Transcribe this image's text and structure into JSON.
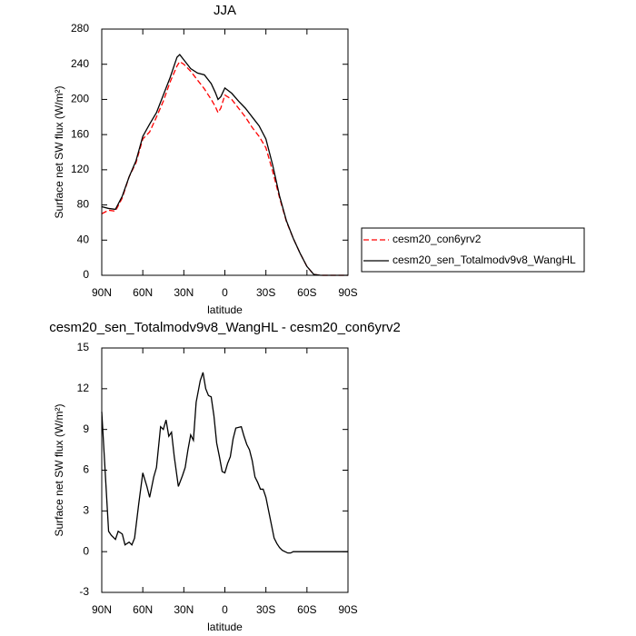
{
  "chart_data": [
    {
      "type": "line",
      "title": "JJA",
      "xlabel": "latitude",
      "ylabel": "Surface net SW flux (W/m²)",
      "x": [
        90,
        85,
        80,
        75,
        70,
        65,
        60,
        55,
        50,
        45,
        40,
        35,
        33,
        30,
        25,
        20,
        15,
        10,
        7,
        5,
        3,
        0,
        -5,
        -10,
        -15,
        -20,
        -25,
        -30,
        -35,
        -40,
        -45,
        -50,
        -55,
        -60,
        -65,
        -70,
        -75,
        -80,
        -85,
        -90
      ],
      "series": [
        {
          "name": "cesm20_con6yrv2",
          "color": "#ff0000",
          "line_style": "dashed",
          "values": [
            70,
            74,
            73,
            88,
            112,
            128,
            155,
            163,
            180,
            198,
            220,
            238,
            243,
            240,
            232,
            222,
            212,
            200,
            192,
            185,
            190,
            205,
            200,
            190,
            180,
            168,
            158,
            145,
            118,
            88,
            61,
            42,
            25,
            10,
            1,
            0,
            0,
            0,
            0,
            0
          ]
        },
        {
          "name": "cesm20_sen_Totalmodv9v8_WangHL",
          "color": "#000000",
          "line_style": "solid",
          "values": [
            78,
            76,
            75,
            90,
            112,
            130,
            158,
            172,
            185,
            205,
            225,
            248,
            251,
            245,
            235,
            230,
            228,
            218,
            208,
            200,
            203,
            213,
            207,
            198,
            190,
            180,
            170,
            155,
            125,
            90,
            62,
            42,
            25,
            10,
            1,
            0,
            0,
            0,
            0,
            0
          ]
        }
      ],
      "xlim": [
        90,
        -90
      ],
      "xticks": [
        {
          "value": 90,
          "label": "90N"
        },
        {
          "value": 60,
          "label": "60N"
        },
        {
          "value": 30,
          "label": "30N"
        },
        0,
        {
          "value": -30,
          "label": "30S"
        },
        {
          "value": -60,
          "label": "60S"
        },
        {
          "value": -90,
          "label": "90S"
        }
      ],
      "ylim": [
        0,
        280
      ],
      "yticks": [
        0,
        40,
        80,
        120,
        160,
        200,
        240,
        280
      ],
      "legend": "right",
      "grid": false
    },
    {
      "type": "line",
      "title": "cesm20_sen_Totalmodv9v8_WangHL - cesm20_con6yrv2",
      "xlabel": "latitude",
      "ylabel": "Surface net SW flux (W/m²)",
      "x": [
        90,
        87,
        85,
        83,
        80,
        78,
        75,
        73,
        70,
        68,
        66,
        63,
        60,
        57,
        55,
        52,
        50,
        47,
        45,
        43,
        41,
        39,
        37,
        34,
        31,
        29,
        27,
        25,
        23,
        21,
        18,
        16,
        14,
        12,
        10,
        8,
        6,
        4,
        2,
        0,
        -2,
        -4,
        -6,
        -8,
        -12,
        -14,
        -16,
        -18,
        -20,
        -22,
        -24,
        -26,
        -28,
        -30,
        -32,
        -34,
        -36,
        -38,
        -40,
        -42,
        -44,
        -46,
        -48,
        -50,
        -52,
        -60,
        -70,
        -80,
        -90
      ],
      "values": [
        10.3,
        5.0,
        1.5,
        1.2,
        0.9,
        1.5,
        1.3,
        0.5,
        0.7,
        0.5,
        1.0,
        3.5,
        5.8,
        4.8,
        4.0,
        5.5,
        6.2,
        9.2,
        9.0,
        9.7,
        8.5,
        8.8,
        7.0,
        4.8,
        5.6,
        6.2,
        7.5,
        8.6,
        8.2,
        11.0,
        12.6,
        13.2,
        12.0,
        11.5,
        11.4,
        10.0,
        8.0,
        7.0,
        5.9,
        5.8,
        6.5,
        7.0,
        8.3,
        9.1,
        9.2,
        8.5,
        7.9,
        7.5,
        6.7,
        5.5,
        5.1,
        4.6,
        4.6,
        4.0,
        3.0,
        2.0,
        1.0,
        0.6,
        0.3,
        0.1,
        0.0,
        -0.1,
        -0.1,
        0.0,
        0.0,
        0,
        0,
        0,
        0
      ],
      "color": "#000000",
      "xlim": [
        90,
        -90
      ],
      "xticks": [
        {
          "value": 90,
          "label": "90N"
        },
        {
          "value": 60,
          "label": "60N"
        },
        {
          "value": 30,
          "label": "30N"
        },
        0,
        {
          "value": -30,
          "label": "30S"
        },
        {
          "value": -60,
          "label": "60S"
        },
        {
          "value": -90,
          "label": "90S"
        }
      ],
      "ylim": [
        -3,
        15
      ],
      "yticks": [
        -3,
        0,
        3,
        6,
        9,
        12,
        15
      ],
      "grid": false
    }
  ]
}
